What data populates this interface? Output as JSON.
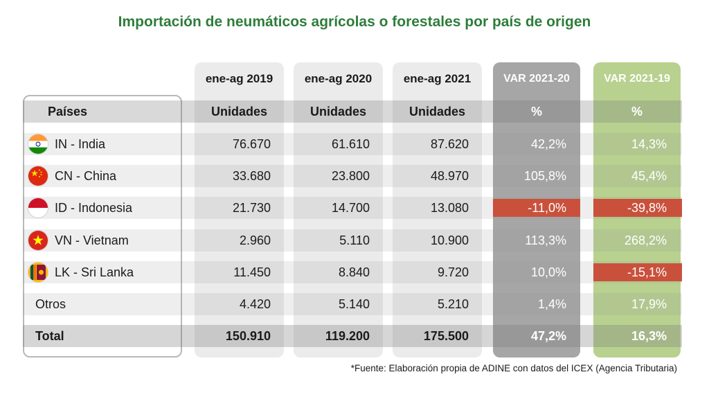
{
  "title": "Importación de neumáticos agrícolas o forestales por país de origen",
  "columns": {
    "c2019": "ene-ag 2019",
    "c2020": "ene-ag 2020",
    "c2021": "ene-ag 2021",
    "var2120": "VAR 2021-20",
    "var2119": "VAR 2021-19"
  },
  "subheaders": {
    "country": "Países",
    "units": "Unidades",
    "percent": "%"
  },
  "rows": [
    {
      "country": "IN - India",
      "flag": "india-flag-icon",
      "v2019": "76.670",
      "v2020": "61.610",
      "v2021": "87.620",
      "var2120": "42,2%",
      "var2119": "14,3%"
    },
    {
      "country": "CN - China",
      "flag": "china-flag-icon",
      "v2019": "33.680",
      "v2020": "23.800",
      "v2021": "48.970",
      "var2120": "105,8%",
      "var2119": "45,4%"
    },
    {
      "country": "ID - Indonesia",
      "flag": "indonesia-flag-icon",
      "v2019": "21.730",
      "v2020": "14.700",
      "v2021": "13.080",
      "var2120": "-11,0%",
      "var2119": "-39,8%"
    },
    {
      "country": "VN - Vietnam",
      "flag": "vietnam-flag-icon",
      "v2019": "2.960",
      "v2020": "5.110",
      "v2021": "10.900",
      "var2120": "113,3%",
      "var2119": "268,2%"
    },
    {
      "country": "LK - Sri Lanka",
      "flag": "sri-lanka-flag-icon",
      "v2019": "11.450",
      "v2020": "8.840",
      "v2021": "9.720",
      "var2120": "10,0%",
      "var2119": "-15,1%"
    },
    {
      "country": "Otros",
      "flag": "",
      "v2019": "4.420",
      "v2020": "5.140",
      "v2021": "5.210",
      "var2120": "1,4%",
      "var2119": "17,9%"
    }
  ],
  "total": {
    "label": "Total",
    "v2019": "150.910",
    "v2020": "119.200",
    "v2021": "175.500",
    "var2120": "47,2%",
    "var2119": "16,3%"
  },
  "colors": {
    "title": "#2e7d3a",
    "negative": "#c9513c",
    "var2120_column": "#a6a6a6",
    "var2119_column": "#b8d18f"
  },
  "source": "*Fuente: Elaboración propia de ADINE con datos del ICEX (Agencia Tributaria)",
  "chart_data": {
    "type": "table",
    "title": "Importación de neumáticos agrícolas o forestales por país de origen",
    "columns": [
      "Países",
      "ene-ag 2019",
      "ene-ag 2020",
      "ene-ag 2021",
      "VAR 2021-20",
      "VAR 2021-19"
    ],
    "units": [
      "",
      "Unidades",
      "Unidades",
      "Unidades",
      "%",
      "%"
    ],
    "rows": [
      [
        "IN - India",
        76670,
        61610,
        87620,
        42.2,
        14.3
      ],
      [
        "CN - China",
        33680,
        23800,
        48970,
        105.8,
        45.4
      ],
      [
        "ID - Indonesia",
        21730,
        14700,
        13080,
        -11.0,
        -39.8
      ],
      [
        "VN - Vietnam",
        2960,
        5110,
        10900,
        113.3,
        268.2
      ],
      [
        "LK - Sri Lanka",
        11450,
        8840,
        9720,
        10.0,
        -15.1
      ],
      [
        "Otros",
        4420,
        5140,
        5210,
        1.4,
        17.9
      ],
      [
        "Total",
        150910,
        119200,
        175500,
        47.2,
        16.3
      ]
    ]
  }
}
